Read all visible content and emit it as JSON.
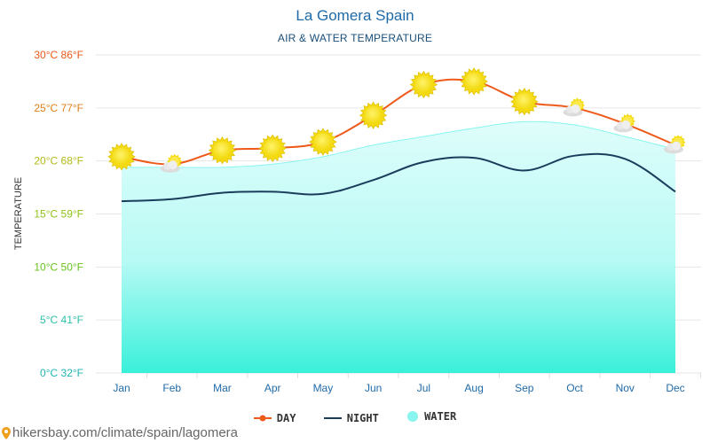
{
  "chart_data": {
    "type": "line",
    "title": "La Gomera Spain",
    "subtitle": "AIR & WATER TEMPERATURE",
    "ylabel": "TEMPERATURE",
    "ylim": [
      0,
      30
    ],
    "y_tick_labels": [
      {
        "value": 0,
        "label": "0°C 32°F",
        "color": "#22b5b5"
      },
      {
        "value": 5,
        "label": "5°C 41°F",
        "color": "#2bbfa8"
      },
      {
        "value": 10,
        "label": "10°C 50°F",
        "color": "#69c21f"
      },
      {
        "value": 15,
        "label": "15°C 59°F",
        "color": "#8fc21a"
      },
      {
        "value": 20,
        "label": "20°C 68°F",
        "color": "#b5b81a"
      },
      {
        "value": 25,
        "label": "25°C 77°F",
        "color": "#e0801a"
      },
      {
        "value": 30,
        "label": "30°C 86°F",
        "color": "#ee5a1a"
      }
    ],
    "categories": [
      "Jan",
      "Feb",
      "Mar",
      "Apr",
      "May",
      "Jun",
      "Jul",
      "Aug",
      "Sep",
      "Oct",
      "Nov",
      "Dec"
    ],
    "series": [
      {
        "name": "DAY",
        "color": "#ee5a1a",
        "values": [
          20.4,
          19.7,
          21.0,
          21.2,
          21.8,
          24.3,
          27.2,
          27.5,
          25.6,
          25.0,
          23.5,
          21.5
        ]
      },
      {
        "name": "NIGHT",
        "color": "#1a3d5c",
        "values": [
          16.2,
          16.4,
          17.0,
          17.1,
          16.9,
          18.2,
          19.9,
          20.3,
          19.1,
          20.5,
          20.2,
          17.1
        ]
      },
      {
        "name": "WATER",
        "color": "#88f5ee",
        "values": [
          19.4,
          19.4,
          19.4,
          19.7,
          20.4,
          21.5,
          22.3,
          23.1,
          23.7,
          23.4,
          22.3,
          21.1
        ]
      }
    ],
    "weather_icons": [
      "sun-icon",
      "partly-cloudy-icon",
      "sun-icon",
      "sun-icon",
      "sun-icon",
      "sun-icon",
      "sun-icon",
      "sun-icon",
      "sun-icon",
      "partly-cloudy-icon",
      "partly-cloudy-icon",
      "partly-cloudy-icon"
    ],
    "grid": true,
    "legend": "bottom-center"
  },
  "legend": {
    "day": "DAY",
    "night": "NIGHT",
    "water": "WATER"
  },
  "source": "hikersbay.com/climate/spain/lagomera",
  "x_tick_color": "#1f6aa8"
}
